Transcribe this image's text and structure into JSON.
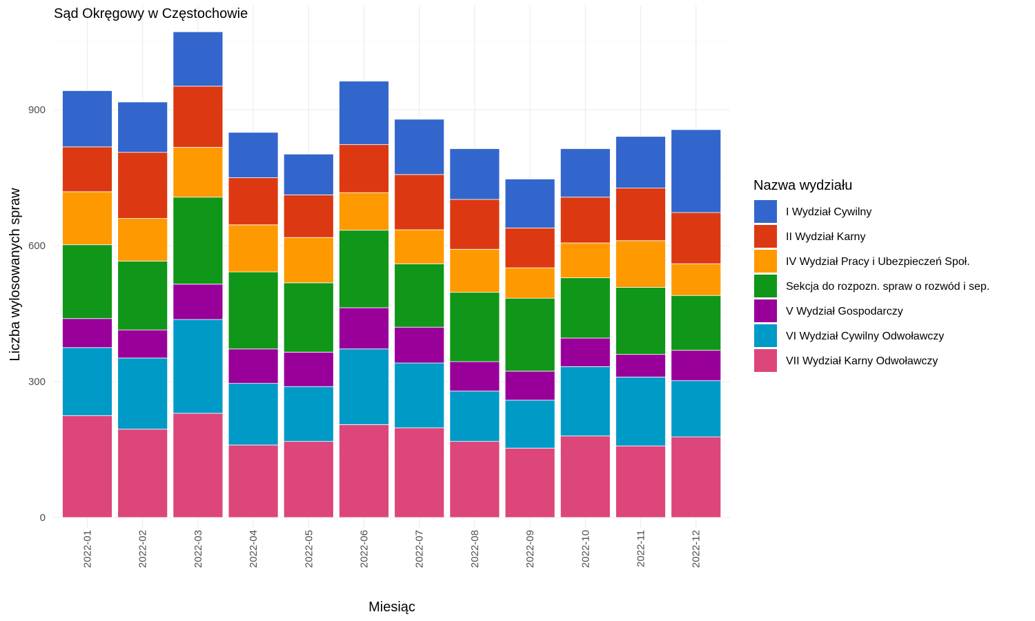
{
  "chart_data": {
    "type": "bar",
    "stacked": true,
    "title": "Sąd Okręgowy w Częstochowie",
    "xlabel": "Miesiąc",
    "ylabel": "Liczba wylosowanych spraw",
    "ylim": [
      0,
      1070
    ],
    "yticks": [
      0,
      300,
      600,
      900
    ],
    "grid": true,
    "legend_title": "Nazwa wydziału",
    "legend_position": "right",
    "categories": [
      "2022-01",
      "2022-02",
      "2022-03",
      "2022-04",
      "2022-05",
      "2022-06",
      "2022-07",
      "2022-08",
      "2022-09",
      "2022-10",
      "2022-11",
      "2022-12"
    ],
    "series": [
      {
        "name": "VII Wydział Karny Odwoławczy",
        "color": "#DC467A",
        "values": [
          225,
          195,
          230,
          160,
          168,
          205,
          198,
          168,
          153,
          180,
          158,
          178
        ]
      },
      {
        "name": "VI Wydział Cywilny Odwoławczy",
        "color": "#009AC7",
        "values": [
          150,
          157,
          207,
          136,
          121,
          167,
          143,
          111,
          106,
          153,
          152,
          124
        ]
      },
      {
        "name": "V Wydział Gospodarczy",
        "color": "#990099",
        "values": [
          64,
          62,
          78,
          76,
          76,
          91,
          79,
          65,
          64,
          63,
          50,
          67
        ]
      },
      {
        "name": "Sekcja do rozpozn. spraw o rozwód i sep.",
        "color": "#109618",
        "values": [
          163,
          152,
          192,
          170,
          153,
          171,
          140,
          153,
          161,
          133,
          148,
          121
        ]
      },
      {
        "name": "IV Wydział Pracy i Ubezpieczeń Społ.",
        "color": "#FF9900",
        "values": [
          117,
          94,
          110,
          104,
          100,
          83,
          75,
          95,
          67,
          77,
          103,
          70
        ]
      },
      {
        "name": "II Wydział Karny",
        "color": "#DC3912",
        "values": [
          99,
          146,
          135,
          104,
          94,
          106,
          122,
          110,
          88,
          101,
          116,
          113
        ]
      },
      {
        "name": "I Wydział Cywilny",
        "color": "#3366CC",
        "values": [
          124,
          111,
          120,
          100,
          90,
          140,
          122,
          112,
          108,
          107,
          114,
          183
        ]
      }
    ],
    "legend_order": [
      "I Wydział Cywilny",
      "II Wydział Karny",
      "IV Wydział Pracy i Ubezpieczeń Społ.",
      "Sekcja do rozpozn. spraw o rozwód i sep.",
      "V Wydział Gospodarczy",
      "VI Wydział Cywilny Odwoławczy",
      "VII Wydział Karny Odwoławczy"
    ]
  }
}
